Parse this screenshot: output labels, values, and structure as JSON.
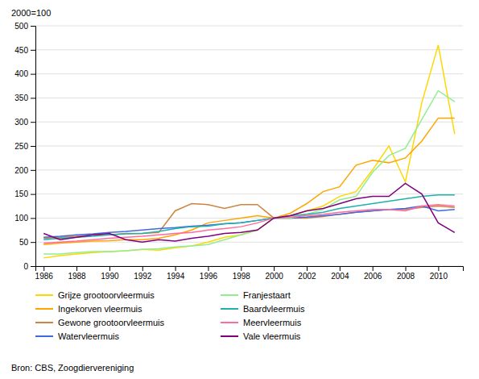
{
  "chart_data": {
    "type": "line",
    "ylabel": "2000=100",
    "annotations": [
      "Bron: CBS, Zoogdiervereniging"
    ],
    "x": [
      1986,
      1987,
      1988,
      1989,
      1990,
      1991,
      1992,
      1993,
      1994,
      1995,
      1996,
      1997,
      1998,
      1999,
      2000,
      2001,
      2002,
      2003,
      2004,
      2005,
      2006,
      2007,
      2008,
      2009,
      2010,
      2011
    ],
    "series": [
      {
        "name": "Grijze grootoorvleermuis",
        "color": "#FFD700",
        "values": [
          17,
          22,
          25,
          28,
          30,
          32,
          35,
          33,
          38,
          42,
          50,
          60,
          65,
          75,
          100,
          105,
          115,
          125,
          145,
          155,
          200,
          250,
          175,
          340,
          460,
          275
        ]
      },
      {
        "name": "Ingekorven vleermuis",
        "color": "#FFA500",
        "values": [
          45,
          48,
          50,
          52,
          53,
          55,
          55,
          58,
          65,
          75,
          90,
          95,
          100,
          105,
          100,
          110,
          130,
          155,
          165,
          210,
          220,
          215,
          225,
          260,
          308,
          308
        ]
      },
      {
        "name": "Gewone grootoorvleermuis",
        "color": "#CD853F",
        "values": [
          58,
          60,
          62,
          65,
          65,
          68,
          68,
          70,
          115,
          130,
          128,
          120,
          128,
          128,
          100,
          100,
          100,
          103,
          108,
          112,
          115,
          118,
          118,
          122,
          125,
          122
        ]
      },
      {
        "name": "Watervleermuis",
        "color": "#4169E1",
        "values": [
          60,
          62,
          65,
          67,
          70,
          72,
          75,
          78,
          80,
          83,
          85,
          88,
          90,
          95,
          100,
          100,
          102,
          105,
          108,
          112,
          115,
          118,
          120,
          125,
          115,
          118
        ]
      },
      {
        "name": "Franjestaart",
        "color": "#90EE90",
        "values": [
          25,
          25,
          28,
          30,
          30,
          32,
          35,
          36,
          40,
          42,
          45,
          55,
          65,
          75,
          100,
          100,
          108,
          118,
          138,
          145,
          195,
          230,
          245,
          305,
          365,
          342
        ]
      },
      {
        "name": "Baardvleermuis",
        "color": "#20B2AA",
        "values": [
          55,
          58,
          60,
          62,
          65,
          67,
          68,
          72,
          78,
          82,
          83,
          88,
          90,
          95,
          100,
          105,
          108,
          112,
          120,
          125,
          130,
          135,
          140,
          145,
          148,
          148
        ]
      },
      {
        "name": "Meervleermuis",
        "color": "#FF6B9D",
        "values": [
          48,
          50,
          52,
          55,
          58,
          60,
          62,
          65,
          68,
          70,
          75,
          78,
          82,
          90,
          100,
          102,
          105,
          108,
          112,
          115,
          118,
          118,
          115,
          125,
          128,
          125
        ]
      },
      {
        "name": "Vale vleermuis",
        "color": "#800080",
        "values": [
          68,
          55,
          60,
          65,
          68,
          55,
          50,
          55,
          52,
          58,
          62,
          68,
          70,
          75,
          100,
          105,
          115,
          120,
          130,
          140,
          145,
          145,
          172,
          150,
          90,
          70
        ]
      }
    ],
    "xlim": [
      1985.5,
      2011.5
    ],
    "xticks": [
      1986,
      1988,
      1990,
      1992,
      1994,
      1996,
      1998,
      2000,
      2002,
      2004,
      2006,
      2008,
      2010
    ],
    "ylim": [
      0,
      500
    ],
    "yticks": [
      0,
      50,
      100,
      150,
      200,
      250,
      300,
      350,
      400,
      450,
      500
    ],
    "grid": true,
    "legend": "bottom"
  }
}
